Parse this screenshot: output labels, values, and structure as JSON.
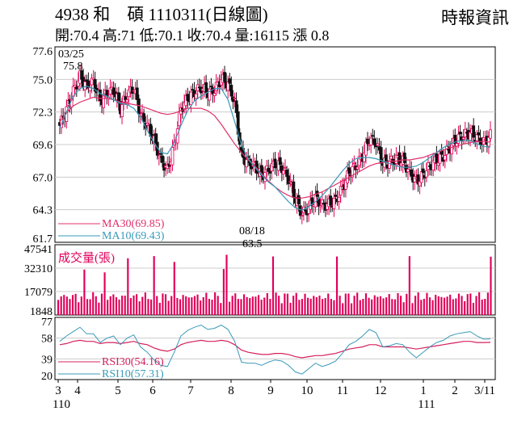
{
  "header": {
    "title": "4938 和　碩 1110311(日線圖)",
    "source": "時報資訊",
    "ohlc": "開:70.4 高:71 低:70.1 收:70.4 量:16115 漲 0.8"
  },
  "colors": {
    "up": "#e5005a",
    "down": "#111111",
    "ma30": "#e0306a",
    "ma10": "#3a9ab8",
    "rsi30": "#d4205e",
    "rsi10": "#3a9ab8",
    "volume": "#e0005a",
    "grid": "#cccccc"
  },
  "chart_data": [
    {
      "type": "candlestick",
      "name": "price",
      "y_ticks": [
        "77.6",
        "75.0",
        "72.3",
        "69.6",
        "67.0",
        "64.3",
        "61.7"
      ],
      "ylim": [
        61.7,
        77.6
      ],
      "grid": true,
      "annotations": [
        {
          "date_label": "03/25",
          "value_label": "75.8",
          "x": "03/25",
          "y": 75.8
        },
        {
          "date_label": "08/18",
          "value_label": "63.5",
          "x": "08/18",
          "y": 63.5
        }
      ],
      "legend": [
        {
          "label": "MA30(69.85)",
          "color_key": "ma30"
        },
        {
          "label": "MA10(69.43)",
          "color_key": "ma10"
        }
      ],
      "close_series": [
        71.2,
        72.5,
        74.0,
        75.2,
        74.4,
        74.8,
        73.2,
        73.8,
        74.1,
        72.6,
        73.7,
        74.3,
        72.0,
        71.2,
        70.0,
        68.4,
        67.6,
        69.6,
        72.6,
        73.4,
        73.9,
        74.3,
        73.9,
        74.1,
        75.0,
        74.6,
        73.1,
        68.7,
        68.2,
        67.9,
        67.1,
        67.6,
        68.1,
        67.8,
        66.9,
        65.2,
        64.0,
        64.5,
        65.3,
        64.7,
        64.8,
        65.1,
        66.1,
        67.4,
        67.9,
        68.7,
        70.1,
        69.8,
        68.1,
        68.2,
        68.5,
        68.3,
        67.4,
        66.6,
        67.2,
        67.9,
        68.4,
        68.7,
        69.4,
        70.1,
        70.4,
        70.6,
        70.2,
        69.8,
        70.4
      ],
      "ma30": [
        71.5,
        72.2,
        72.8,
        73.1,
        73.3,
        73.5,
        73.4,
        73.4,
        73.3,
        73.1,
        73.0,
        72.9,
        72.8,
        72.6,
        72.4,
        72.2,
        72.1,
        72.2,
        72.4,
        72.6,
        72.6,
        72.6,
        72.4,
        72.0,
        71.3,
        70.5,
        69.7,
        69.0,
        68.4,
        67.9,
        67.3,
        66.7,
        66.2,
        65.8,
        65.5,
        65.3,
        65.3,
        65.4,
        65.6,
        65.8,
        66.1,
        66.4,
        66.7,
        67.0,
        67.3,
        67.6,
        67.9,
        68.1,
        68.2,
        68.3,
        68.3,
        68.4,
        68.4,
        68.5,
        68.6,
        68.8,
        69.0,
        69.2,
        69.4,
        69.5,
        69.7,
        69.8,
        69.9,
        69.9,
        69.85
      ],
      "ma10": [
        71.0,
        72.3,
        73.6,
        74.2,
        74.4,
        74.2,
        73.8,
        73.6,
        73.3,
        73.0,
        72.9,
        72.6,
        71.9,
        70.8,
        69.8,
        69.0,
        68.9,
        69.8,
        71.2,
        72.4,
        73.2,
        73.6,
        73.9,
        74.2,
        74.2,
        73.3,
        71.5,
        69.6,
        68.5,
        67.8,
        67.2,
        66.6,
        66.2,
        65.6,
        65.0,
        64.5,
        64.3,
        64.6,
        65.0,
        65.5,
        66.1,
        66.8,
        67.5,
        68.1,
        68.5,
        68.6,
        68.6,
        68.5,
        68.3,
        68.1,
        67.9,
        67.8,
        67.8,
        67.9,
        68.2,
        68.6,
        69.0,
        69.4,
        69.7,
        69.9,
        70.0,
        70.0,
        69.7,
        69.5,
        69.43
      ]
    },
    {
      "type": "bar",
      "name": "volume",
      "title": "成交量(張)",
      "y_ticks": [
        "47541",
        "32310",
        "17079",
        "1848"
      ],
      "ylim": [
        1848,
        47541
      ],
      "grid": true
    },
    {
      "type": "line",
      "name": "rsi",
      "y_ticks": [
        "77",
        "58",
        "39",
        "20"
      ],
      "ylim": [
        20,
        77
      ],
      "grid": true,
      "legend": [
        {
          "label": "RSI30(54.16)",
          "color_key": "rsi30"
        },
        {
          "label": "RSI10(57.31)",
          "color_key": "rsi10"
        }
      ],
      "rsi30": [
        52,
        53,
        55,
        56,
        55,
        55,
        53,
        54,
        54,
        53,
        54,
        55,
        53,
        52,
        49,
        47,
        46,
        48,
        52,
        54,
        55,
        56,
        55,
        55,
        56,
        55,
        52,
        47,
        45,
        44,
        43,
        43,
        44,
        44,
        43,
        41,
        40,
        41,
        42,
        42,
        43,
        44,
        46,
        48,
        49,
        50,
        52,
        52,
        50,
        50,
        50,
        50,
        49,
        48,
        49,
        50,
        51,
        52,
        53,
        54,
        55,
        55,
        54,
        54,
        54.16
      ],
      "rsi10": [
        55,
        60,
        64,
        68,
        62,
        62,
        54,
        58,
        60,
        52,
        58,
        61,
        50,
        45,
        38,
        33,
        32,
        45,
        60,
        65,
        68,
        70,
        66,
        67,
        70,
        66,
        55,
        36,
        35,
        35,
        33,
        36,
        38,
        37,
        33,
        27,
        25,
        30,
        35,
        32,
        34,
        37,
        44,
        52,
        55,
        60,
        66,
        63,
        50,
        51,
        53,
        52,
        45,
        40,
        45,
        50,
        54,
        56,
        60,
        62,
        63,
        64,
        60,
        57,
        57.31
      ]
    }
  ],
  "x_axis": {
    "ticks": [
      {
        "label": "3",
        "sub": "110"
      },
      {
        "label": "4",
        "sub": ""
      },
      {
        "label": "5",
        "sub": ""
      },
      {
        "label": "6",
        "sub": ""
      },
      {
        "label": "7",
        "sub": ""
      },
      {
        "label": "8",
        "sub": ""
      },
      {
        "label": "9",
        "sub": ""
      },
      {
        "label": "10",
        "sub": ""
      },
      {
        "label": "11",
        "sub": ""
      },
      {
        "label": "12",
        "sub": ""
      },
      {
        "label": "1",
        "sub": "111"
      },
      {
        "label": "2",
        "sub": ""
      },
      {
        "label": "3/11",
        "sub": ""
      }
    ]
  }
}
